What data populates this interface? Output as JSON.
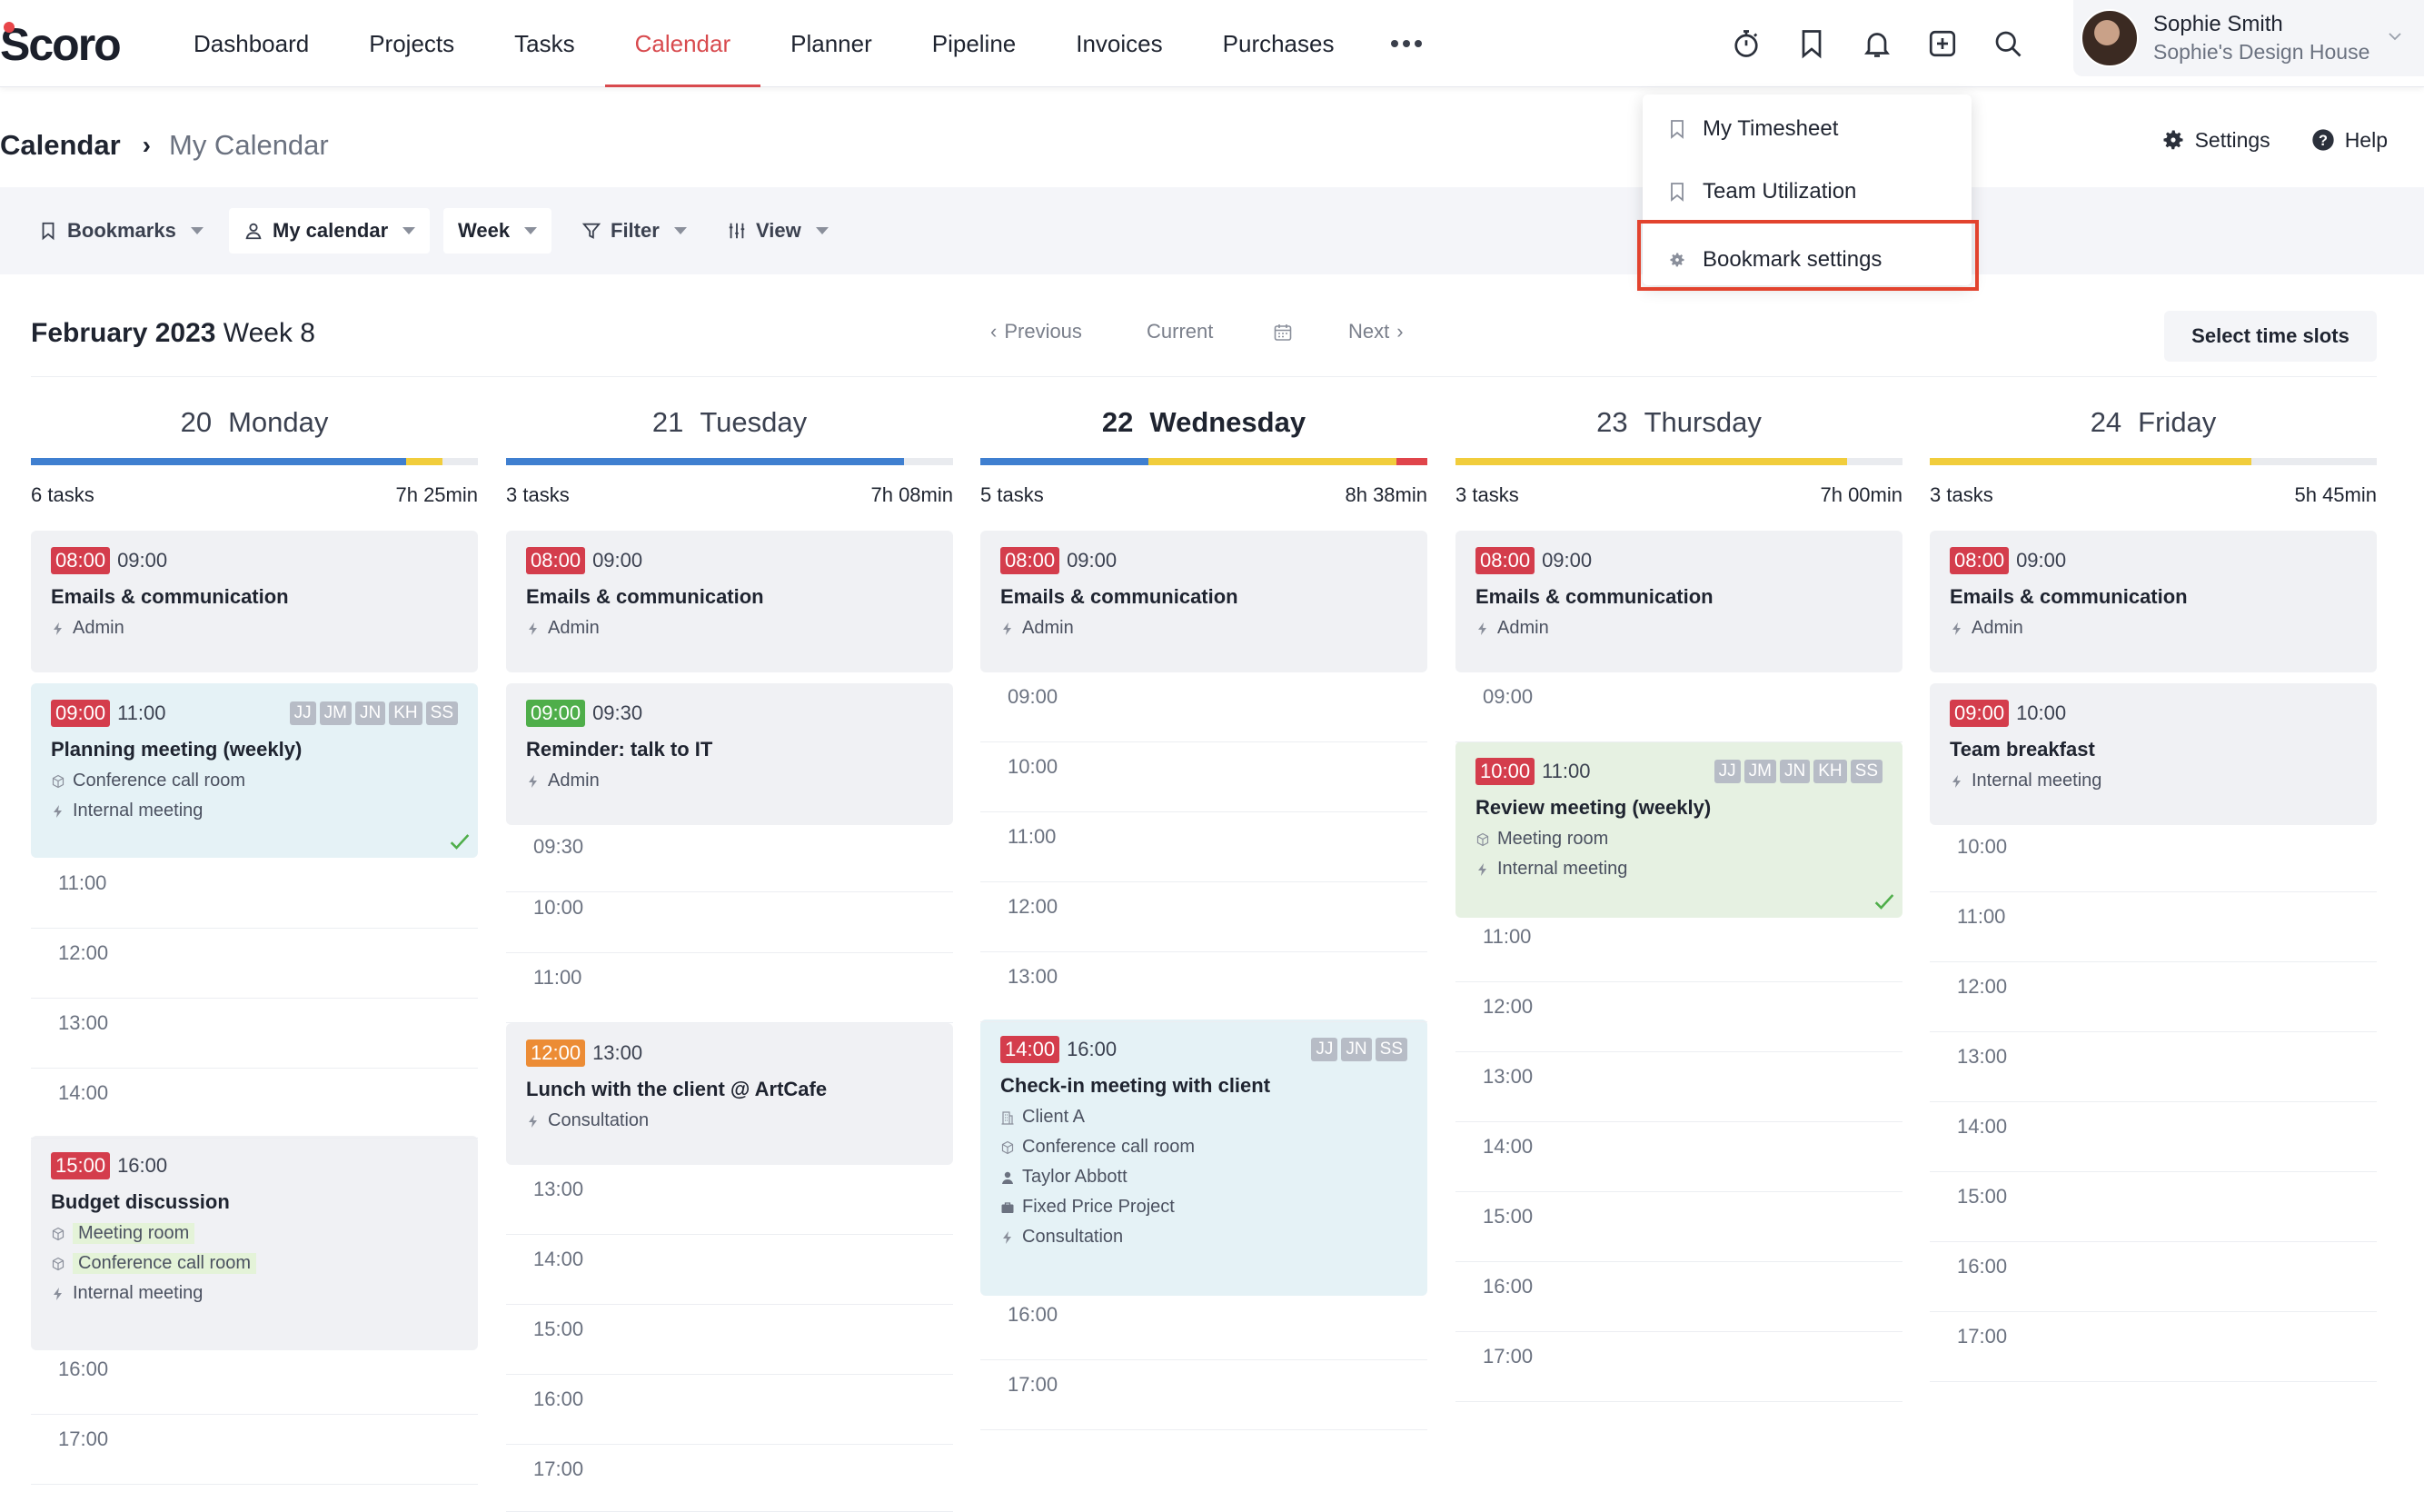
{
  "app": {
    "logo": "Scoro"
  },
  "nav": {
    "items": [
      "Dashboard",
      "Projects",
      "Tasks",
      "Calendar",
      "Planner",
      "Pipeline",
      "Invoices",
      "Purchases"
    ],
    "active": "Calendar"
  },
  "top_icons": [
    "timer-icon",
    "bookmark-icon",
    "bell-icon",
    "add-icon",
    "search-icon"
  ],
  "user": {
    "name": "Sophie Smith",
    "company": "Sophie's Design House"
  },
  "breadcrumb": {
    "root": "Calendar",
    "current": "My Calendar"
  },
  "header_actions": {
    "settings": "Settings",
    "help": "Help"
  },
  "toolbar": {
    "bookmarks": "Bookmarks",
    "calendar": "My calendar",
    "range": "Week",
    "filter": "Filter",
    "view": "View"
  },
  "bookmarks_menu": {
    "items": [
      "My Timesheet",
      "Team Utilization"
    ],
    "settings": "Bookmark settings"
  },
  "week": {
    "month": "February 2023",
    "week": "Week 8",
    "previous": "Previous",
    "current": "Current",
    "next": "Next",
    "select_slots": "Select time slots"
  },
  "colors": {
    "accent": "#d84a4e",
    "blue": "#3f7fd0",
    "yellow": "#f1cd3c",
    "red": "#e0454b",
    "highlight": "#e2432e"
  },
  "days": [
    {
      "num": "20",
      "name": "Monday",
      "tasks": "6 tasks",
      "total": "7h 25min",
      "today": false,
      "progress": [
        {
          "color": "#3f7fd0",
          "frac": 0.84
        },
        {
          "color": "#f1cd3c",
          "frac": 0.08
        }
      ],
      "events": [
        {
          "start": "08:00",
          "end": "09:00",
          "badge": "red",
          "title": "Emails & communication",
          "lines": [
            {
              "icon": "bolt-icon",
              "text": "Admin"
            }
          ],
          "people": [],
          "style": "gray",
          "check": false
        },
        {
          "start": "09:00",
          "end": "11:00",
          "badge": "red",
          "title": "Planning meeting (weekly)",
          "lines": [
            {
              "icon": "room-icon",
              "text": "Conference call room"
            },
            {
              "icon": "bolt-icon",
              "text": "Internal meeting"
            }
          ],
          "people": [
            "JJ",
            "JM",
            "JN",
            "KH",
            "SS"
          ],
          "style": "blue",
          "check": true
        },
        {
          "start": "15:00",
          "end": "16:00",
          "badge": "red",
          "title": "Budget discussion",
          "lines": [
            {
              "icon": "room-icon",
              "text": "Meeting room",
              "hl": true
            },
            {
              "icon": "room-icon",
              "text": "Conference call room",
              "hl": true
            },
            {
              "icon": "bolt-icon",
              "text": "Internal meeting"
            }
          ],
          "people": [],
          "style": "gray",
          "check": false
        }
      ],
      "slots": [
        "11:00",
        "12:00",
        "13:00",
        "14:00",
        "16:00",
        "17:00"
      ]
    },
    {
      "num": "21",
      "name": "Tuesday",
      "tasks": "3 tasks",
      "total": "7h 08min",
      "today": false,
      "progress": [
        {
          "color": "#3f7fd0",
          "frac": 0.89
        }
      ],
      "events": [
        {
          "start": "08:00",
          "end": "09:00",
          "badge": "red",
          "title": "Emails & communication",
          "lines": [
            {
              "icon": "bolt-icon",
              "text": "Admin"
            }
          ],
          "people": [],
          "style": "gray",
          "check": false
        },
        {
          "start": "09:00",
          "end": "09:30",
          "badge": "green",
          "title": "Reminder: talk to IT",
          "lines": [
            {
              "icon": "bolt-icon",
              "text": "Admin"
            }
          ],
          "people": [],
          "style": "gray",
          "check": false
        },
        {
          "start": "12:00",
          "end": "13:00",
          "badge": "orange",
          "title": "Lunch with the client @ ArtCafe",
          "lines": [
            {
              "icon": "bolt-icon",
              "text": "Consultation"
            }
          ],
          "people": [],
          "style": "gray",
          "check": false
        }
      ],
      "slots": [
        "09:30",
        "10:00",
        "11:00",
        "13:00",
        "14:00",
        "15:00",
        "16:00",
        "17:00"
      ]
    },
    {
      "num": "22",
      "name": "Wednesday",
      "tasks": "5 tasks",
      "total": "8h 38min",
      "today": true,
      "progress": [
        {
          "color": "#3f7fd0",
          "frac": 0.375
        },
        {
          "color": "#f1cd3c",
          "frac": 0.555
        },
        {
          "color": "#e0454b",
          "frac": 0.07
        }
      ],
      "events": [
        {
          "start": "08:00",
          "end": "09:00",
          "badge": "red",
          "title": "Emails & communication",
          "lines": [
            {
              "icon": "bolt-icon",
              "text": "Admin"
            }
          ],
          "people": [],
          "style": "gray",
          "check": false
        },
        {
          "start": "14:00",
          "end": "16:00",
          "badge": "red",
          "title": "Check-in meeting with client",
          "lines": [
            {
              "icon": "building-icon",
              "text": "Client A"
            },
            {
              "icon": "room-icon",
              "text": "Conference call room"
            },
            {
              "icon": "person-icon",
              "text": "Taylor Abbott"
            },
            {
              "icon": "briefcase-icon",
              "text": "Fixed Price Project"
            },
            {
              "icon": "bolt-icon",
              "text": "Consultation"
            }
          ],
          "people": [
            "JJ",
            "JN",
            "SS"
          ],
          "style": "blue",
          "check": false
        }
      ],
      "slots": [
        "09:00",
        "10:00",
        "11:00",
        "12:00",
        "13:00",
        "16:00",
        "17:00"
      ]
    },
    {
      "num": "23",
      "name": "Thursday",
      "tasks": "3 tasks",
      "total": "7h 00min",
      "today": false,
      "progress": [
        {
          "color": "#f1cd3c",
          "frac": 0.875
        }
      ],
      "events": [
        {
          "start": "08:00",
          "end": "09:00",
          "badge": "red",
          "title": "Emails & communication",
          "lines": [
            {
              "icon": "bolt-icon",
              "text": "Admin"
            }
          ],
          "people": [],
          "style": "gray",
          "check": false
        },
        {
          "start": "10:00",
          "end": "11:00",
          "badge": "red",
          "title": "Review meeting (weekly)",
          "lines": [
            {
              "icon": "room-icon",
              "text": "Meeting room"
            },
            {
              "icon": "bolt-icon",
              "text": "Internal meeting"
            }
          ],
          "people": [
            "JJ",
            "JM",
            "JN",
            "KH",
            "SS"
          ],
          "style": "green",
          "check": true
        }
      ],
      "slots": [
        "09:00",
        "11:00",
        "12:00",
        "13:00",
        "14:00",
        "15:00",
        "16:00",
        "17:00"
      ]
    },
    {
      "num": "24",
      "name": "Friday",
      "tasks": "3 tasks",
      "total": "5h 45min",
      "today": false,
      "progress": [
        {
          "color": "#f1cd3c",
          "frac": 0.72
        }
      ],
      "events": [
        {
          "start": "08:00",
          "end": "09:00",
          "badge": "red",
          "title": "Emails & communication",
          "lines": [
            {
              "icon": "bolt-icon",
              "text": "Admin"
            }
          ],
          "people": [],
          "style": "gray",
          "check": false
        },
        {
          "start": "09:00",
          "end": "10:00",
          "badge": "red",
          "title": "Team breakfast",
          "lines": [
            {
              "icon": "bolt-icon",
              "text": "Internal meeting"
            }
          ],
          "people": [],
          "style": "gray",
          "check": false
        }
      ],
      "slots": [
        "10:00",
        "11:00",
        "12:00",
        "13:00",
        "14:00",
        "15:00",
        "16:00",
        "17:00"
      ]
    }
  ]
}
